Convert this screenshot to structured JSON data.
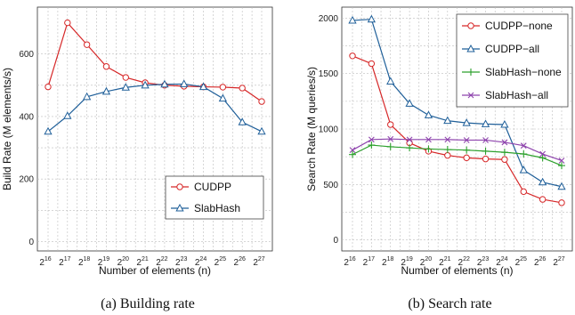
{
  "chart_data": [
    {
      "type": "line",
      "caption": "(a) Building rate",
      "xlabel": "Number of elements (n)",
      "ylabel": "Build Rate (M elements/s)",
      "ylim": [
        -30,
        750
      ],
      "yticks": [
        0,
        200,
        400,
        600
      ],
      "x_exponents": [
        "16",
        "17",
        "18",
        "19",
        "20",
        "21",
        "22",
        "23",
        "24",
        "25",
        "26",
        "27"
      ],
      "x_base": "2",
      "grid": true,
      "legend_position": "lower-right",
      "series": [
        {
          "name": "CUDPP",
          "marker": "circle",
          "color": "#d62728",
          "values": [
            495,
            700,
            630,
            560,
            525,
            508,
            500,
            497,
            495,
            494,
            491,
            448
          ]
        },
        {
          "name": "SlabHash",
          "marker": "triangle",
          "color": "#1f5f99",
          "values": [
            352,
            402,
            463,
            480,
            493,
            500,
            503,
            504,
            495,
            458,
            382,
            352
          ]
        }
      ]
    },
    {
      "type": "line",
      "caption": "(b) Search rate",
      "xlabel": "Number of elements (n)",
      "ylabel": "Search Rate (M queries/s)",
      "ylim": [
        -100,
        2100
      ],
      "yticks": [
        0,
        500,
        1000,
        1500,
        2000
      ],
      "x_exponents": [
        "16",
        "17",
        "18",
        "19",
        "20",
        "21",
        "22",
        "23",
        "24",
        "25",
        "26",
        "27"
      ],
      "x_base": "2",
      "grid": true,
      "legend_position": "top-right",
      "series": [
        {
          "name": "CUDPP−none",
          "marker": "circle",
          "color": "#d62728",
          "values": [
            1660,
            1590,
            1040,
            875,
            800,
            762,
            740,
            730,
            725,
            435,
            365,
            335
          ]
        },
        {
          "name": "CUDPP−all",
          "marker": "triangle",
          "color": "#1f5f99",
          "values": [
            1980,
            1990,
            1430,
            1230,
            1125,
            1075,
            1055,
            1045,
            1040,
            630,
            520,
            480
          ]
        },
        {
          "name": "SlabHash−none",
          "marker": "plus",
          "color": "#2ca02c",
          "values": [
            770,
            855,
            840,
            830,
            820,
            815,
            810,
            800,
            790,
            775,
            740,
            670
          ]
        },
        {
          "name": "SlabHash−all",
          "marker": "cross",
          "color": "#8e44ad",
          "values": [
            810,
            905,
            910,
            905,
            905,
            905,
            900,
            900,
            880,
            850,
            775,
            715
          ]
        }
      ]
    }
  ]
}
